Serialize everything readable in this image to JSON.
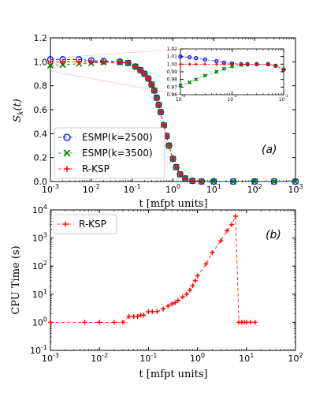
{
  "colors": {
    "esmp2500": "#0000ff",
    "esmp3500": "#008000",
    "rksp": "#ff0000",
    "guide": "#cc4444"
  },
  "chart_data": [
    {
      "type": "scatter",
      "panel_label": "(a)",
      "xlabel": "t [mfpt units]",
      "ylabel": "S_k(t)",
      "ylabel_main": "S",
      "ylabel_sub": "k",
      "ylabel_rest": "(t)",
      "xscale": "log",
      "xlim": [
        0.001,
        1000
      ],
      "ylim": [
        0,
        1.2
      ],
      "xticks": [
        "10-3",
        "10-2",
        "10-1",
        "100",
        "101",
        "102",
        "103"
      ],
      "yticks": [
        "0.0",
        "0.2",
        "0.4",
        "0.6",
        "0.8",
        "1.0",
        "1.2"
      ],
      "legend": [
        "ESMP(k=2500)",
        "ESMP(k=3500)",
        "R-KSP"
      ],
      "legend_position": "lower-left",
      "series": [
        {
          "name": "ESMP(k=2500)",
          "marker": "circle",
          "x": [
            0.001,
            0.002,
            0.005,
            0.01,
            0.02,
            0.05,
            0.08,
            0.12,
            0.16,
            0.2,
            0.25,
            0.3,
            0.35,
            0.4,
            0.45,
            0.5,
            0.6,
            0.7,
            0.8,
            1.0,
            1.2,
            1.5,
            2,
            3,
            5,
            10,
            30,
            100,
            300,
            1000
          ],
          "y": [
            1.02,
            1.02,
            1.02,
            1.01,
            1.005,
            1.0,
            0.99,
            0.96,
            0.93,
            0.9,
            0.86,
            0.81,
            0.76,
            0.7,
            0.64,
            0.58,
            0.47,
            0.38,
            0.3,
            0.19,
            0.12,
            0.06,
            0.025,
            0.005,
            0.0,
            0.0,
            0.0,
            0.0,
            0.0,
            0.0
          ]
        },
        {
          "name": "ESMP(k=3500)",
          "marker": "x",
          "x": [
            0.001,
            0.002,
            0.005,
            0.01,
            0.02,
            0.05,
            0.08,
            0.12,
            0.16,
            0.2,
            0.25,
            0.3,
            0.35,
            0.4,
            0.45,
            0.5,
            0.6,
            0.7,
            0.8,
            1.0,
            1.2,
            1.5,
            2,
            3,
            5,
            10,
            30,
            100,
            300,
            1000
          ],
          "y": [
            0.97,
            0.975,
            0.985,
            0.99,
            0.995,
            0.995,
            0.99,
            0.96,
            0.93,
            0.9,
            0.86,
            0.81,
            0.76,
            0.7,
            0.64,
            0.58,
            0.47,
            0.38,
            0.3,
            0.19,
            0.12,
            0.06,
            0.025,
            0.005,
            0.0,
            0.0,
            0.0,
            0.0,
            0.0,
            0.0
          ]
        },
        {
          "name": "R-KSP",
          "marker": "plus",
          "x": [
            0.001,
            0.002,
            0.005,
            0.01,
            0.02,
            0.05,
            0.08,
            0.12,
            0.16,
            0.2,
            0.25,
            0.3,
            0.35,
            0.4,
            0.45,
            0.5,
            0.6,
            0.7,
            0.8,
            1.0,
            1.2,
            1.5,
            2,
            3,
            5
          ],
          "y": [
            1.0,
            1.0,
            1.0,
            1.0,
            1.0,
            0.995,
            0.99,
            0.96,
            0.93,
            0.9,
            0.86,
            0.81,
            0.76,
            0.7,
            0.64,
            0.58,
            0.47,
            0.38,
            0.3,
            0.19,
            0.12,
            0.06,
            0.025,
            0.005,
            0.0
          ]
        }
      ],
      "inset": {
        "xscale": "log",
        "xlim": [
          0.001,
          0.1
        ],
        "ylim": [
          0.96,
          1.02
        ],
        "xticks": [
          "10-3",
          "10-2",
          "10-1"
        ],
        "yticks": [
          "0.96",
          "0.97",
          "0.98",
          "0.99",
          "1.00",
          "1.01",
          "1.02"
        ],
        "series": [
          {
            "name": "ESMP(k=2500)",
            "marker": "circle",
            "x": [
              0.001,
              0.0015,
              0.002,
              0.003,
              0.005,
              0.007,
              0.01,
              0.015,
              0.02,
              0.03,
              0.05,
              0.07,
              0.1
            ],
            "y": [
              1.01,
              1.009,
              1.008,
              1.006,
              1.004,
              1.002,
              1.001,
              1.0,
              1.0,
              1.0,
              1.0,
              0.998,
              0.993
            ]
          },
          {
            "name": "ESMP(k=3500)",
            "marker": "x",
            "x": [
              0.001,
              0.0015,
              0.002,
              0.003,
              0.005,
              0.007,
              0.01,
              0.015,
              0.02,
              0.03,
              0.05,
              0.07,
              0.1
            ],
            "y": [
              0.972,
              0.976,
              0.98,
              0.985,
              0.99,
              0.994,
              0.997,
              0.999,
              1.0,
              1.0,
              1.0,
              0.998,
              0.993
            ]
          },
          {
            "name": "R-KSP",
            "marker": "plus",
            "x": [
              0.001,
              0.0015,
              0.002,
              0.003,
              0.005,
              0.007,
              0.01,
              0.015,
              0.02,
              0.03,
              0.05,
              0.07,
              0.1
            ],
            "y": [
              1.0,
              1.0,
              1.0,
              1.0,
              1.0,
              1.0,
              1.0,
              1.0,
              1.0,
              1.0,
              1.0,
              0.998,
              0.993
            ]
          }
        ]
      }
    },
    {
      "type": "line",
      "panel_label": "(b)",
      "xlabel": "t [mfpt units]",
      "ylabel": "CPU Time (s)",
      "xscale": "log",
      "yscale": "log",
      "xlim": [
        0.001,
        100
      ],
      "ylim": [
        0.1,
        10000
      ],
      "xticks": [
        "10-3",
        "10-2",
        "10-1",
        "100",
        "101",
        "102"
      ],
      "yticks": [
        "10-1",
        "100",
        "101",
        "102",
        "103",
        "104"
      ],
      "legend": [
        "R-KSP"
      ],
      "legend_position": "top-left",
      "series": [
        {
          "name": "R-KSP",
          "marker": "plus",
          "x": [
            0.001,
            0.005,
            0.01,
            0.02,
            0.03,
            0.04,
            0.05,
            0.06,
            0.07,
            0.08,
            0.1,
            0.12,
            0.15,
            0.2,
            0.25,
            0.3,
            0.35,
            0.4,
            0.5,
            0.6,
            0.7,
            0.8,
            0.9,
            1.0,
            1.5,
            2.0,
            3.0,
            4.0,
            5.0,
            6.0,
            7.0,
            8.0,
            9.0,
            10.0,
            12.0,
            15.0
          ],
          "y": [
            1.0,
            1.0,
            1.0,
            1.0,
            1.0,
            1.6,
            1.6,
            1.6,
            1.8,
            1.8,
            2.4,
            2.4,
            2.4,
            3.0,
            3.8,
            4.5,
            5.0,
            6.0,
            8.0,
            10.0,
            14.0,
            20.0,
            30.0,
            45.0,
            120.0,
            300.0,
            800.0,
            1800.0,
            3000.0,
            6000.0,
            1.0,
            1.0,
            1.0,
            1.0,
            1.0,
            1.0
          ]
        }
      ]
    }
  ]
}
